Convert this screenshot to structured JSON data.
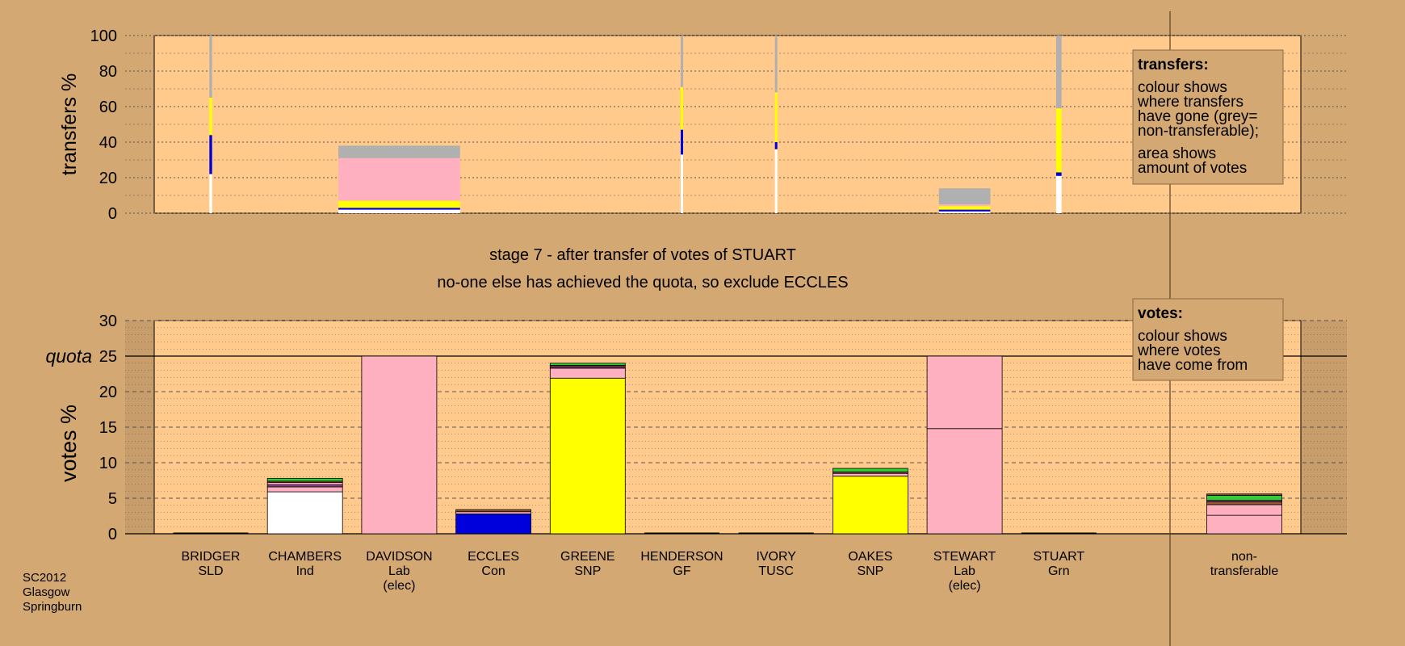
{
  "stage_line": "stage 7 - after transfer of votes of STUART",
  "exclude_line": "no-one else has achieved the quota, so exclude ECCLES",
  "source": [
    "SC2012",
    "Glasgow",
    "Springburn"
  ],
  "colors": {
    "background": "#d4a872",
    "plot_bg": "#ffca8c",
    "white": "#ffffff",
    "blue": "#0000dd",
    "yellow": "#ffff00",
    "pink": "#ffb0c0",
    "grey": "#b0b0b0",
    "green": "#33cc33",
    "brown": "#9a5a2e",
    "purple": "#a040a0"
  },
  "transfers_legend": {
    "title": "transfers:",
    "lines": [
      "colour shows",
      "where transfers",
      "have gone (grey=",
      "non-transferable);"
    ],
    "lines2": [
      "area shows",
      "amount of votes"
    ]
  },
  "votes_legend": {
    "title": "votes:",
    "lines": [
      "colour shows",
      "where votes",
      "have come from"
    ]
  },
  "chart_data": [
    {
      "type": "bar",
      "stacked": true,
      "ylabel": "transfers %",
      "ylim": [
        0,
        100
      ],
      "yticks": [
        0,
        20,
        40,
        60,
        80,
        100
      ],
      "grid": true,
      "categories": [
        "BRIDGER",
        "CHAMBERS",
        "DAVIDSON",
        "ECCLES",
        "GREENE",
        "HENDERSON",
        "IVORY",
        "OAKES",
        "STEWART",
        "STUART"
      ],
      "bars": [
        {
          "candidate": "BRIDGER",
          "width_votes": 0.1,
          "segments": [
            {
              "color": "white",
              "value": 22
            },
            {
              "color": "blue",
              "value": 22
            },
            {
              "color": "yellow",
              "value": 21
            },
            {
              "color": "grey",
              "value": 35
            }
          ]
        },
        {
          "candidate": "DAVIDSON",
          "width_votes": 4.5,
          "segments": [
            {
              "color": "white",
              "value": 2
            },
            {
              "color": "blue",
              "value": 1
            },
            {
              "color": "yellow",
              "value": 4
            },
            {
              "color": "pink",
              "value": 24
            },
            {
              "color": "grey",
              "value": 7
            }
          ]
        },
        {
          "candidate": "HENDERSON",
          "width_votes": 0.05,
          "segments": [
            {
              "color": "white",
              "value": 33
            },
            {
              "color": "blue",
              "value": 14
            },
            {
              "color": "yellow",
              "value": 24
            },
            {
              "color": "grey",
              "value": 29
            }
          ]
        },
        {
          "candidate": "IVORY",
          "width_votes": 0.05,
          "segments": [
            {
              "color": "white",
              "value": 36
            },
            {
              "color": "blue",
              "value": 4
            },
            {
              "color": "yellow",
              "value": 28
            },
            {
              "color": "grey",
              "value": 32
            }
          ]
        },
        {
          "candidate": "STEWART",
          "width_votes": 1.9,
          "segments": [
            {
              "color": "white",
              "value": 1
            },
            {
              "color": "blue",
              "value": 1
            },
            {
              "color": "yellow",
              "value": 2
            },
            {
              "color": "pink",
              "value": 1
            },
            {
              "color": "grey",
              "value": 9
            }
          ]
        },
        {
          "candidate": "STUART",
          "width_votes": 0.2,
          "segments": [
            {
              "color": "white",
              "value": 21
            },
            {
              "color": "blue",
              "value": 2
            },
            {
              "color": "yellow",
              "value": 36
            },
            {
              "color": "grey",
              "value": 41
            }
          ]
        }
      ]
    },
    {
      "type": "bar",
      "stacked": true,
      "ylabel": "votes %",
      "ylim": [
        0,
        30
      ],
      "yticks": [
        0,
        5,
        10,
        15,
        20,
        25,
        30
      ],
      "quota": 25,
      "quota_label": "quota",
      "grid": true,
      "categories": [
        "BRIDGER",
        "CHAMBERS",
        "DAVIDSON",
        "ECCLES",
        "GREENE",
        "HENDERSON",
        "IVORY",
        "OAKES",
        "STEWART",
        "STUART",
        "non-transferable"
      ],
      "candidates": [
        {
          "name": "BRIDGER",
          "party": "SLD",
          "elected": "",
          "segments": []
        },
        {
          "name": "CHAMBERS",
          "party": "Ind",
          "elected": "",
          "segments": [
            {
              "color": "white",
              "value": 5.9
            },
            {
              "color": "pink",
              "value": 0.7
            },
            {
              "color": "purple",
              "value": 0.3
            },
            {
              "color": "pink",
              "value": 0.3
            },
            {
              "color": "brown",
              "value": 0.2
            },
            {
              "color": "green",
              "value": 0.4
            }
          ]
        },
        {
          "name": "DAVIDSON",
          "party": "Lab",
          "elected": "(elec)",
          "segments": [
            {
              "color": "pink",
              "value": 25
            }
          ]
        },
        {
          "name": "ECCLES",
          "party": "Con",
          "elected": "",
          "segments": [
            {
              "color": "blue",
              "value": 2.8
            },
            {
              "color": "pink",
              "value": 0.3
            },
            {
              "color": "brown",
              "value": 0.3
            }
          ]
        },
        {
          "name": "GREENE",
          "party": "SNP",
          "elected": "",
          "segments": [
            {
              "color": "yellow",
              "value": 21.9
            },
            {
              "color": "pink",
              "value": 1.4
            },
            {
              "color": "purple",
              "value": 0.2
            },
            {
              "color": "brown",
              "value": 0.2
            },
            {
              "color": "green",
              "value": 0.3
            }
          ]
        },
        {
          "name": "HENDERSON",
          "party": "GF",
          "elected": "",
          "segments": []
        },
        {
          "name": "IVORY",
          "party": "TUSC",
          "elected": "",
          "segments": []
        },
        {
          "name": "OAKES",
          "party": "SNP",
          "elected": "",
          "segments": [
            {
              "color": "yellow",
              "value": 8.1
            },
            {
              "color": "pink",
              "value": 0.4
            },
            {
              "color": "brown",
              "value": 0.2
            },
            {
              "color": "green",
              "value": 0.5
            }
          ]
        },
        {
          "name": "STEWART",
          "party": "Lab",
          "elected": "(elec)",
          "segments": [
            {
              "color": "pink",
              "value": 14.8
            },
            {
              "color": "pink",
              "value": 10.2
            }
          ]
        },
        {
          "name": "STUART",
          "party": "Grn",
          "elected": "",
          "segments": []
        },
        {
          "name": "non-",
          "party": "transferable",
          "elected": "",
          "segments": [
            {
              "color": "pink",
              "value": 2.6
            },
            {
              "color": "pink",
              "value": 1.5
            },
            {
              "color": "brown",
              "value": 0.4
            },
            {
              "color": "purple",
              "value": 0.2
            },
            {
              "color": "green",
              "value": 0.7
            },
            {
              "color": "brown",
              "value": 0.2
            }
          ]
        }
      ]
    }
  ]
}
